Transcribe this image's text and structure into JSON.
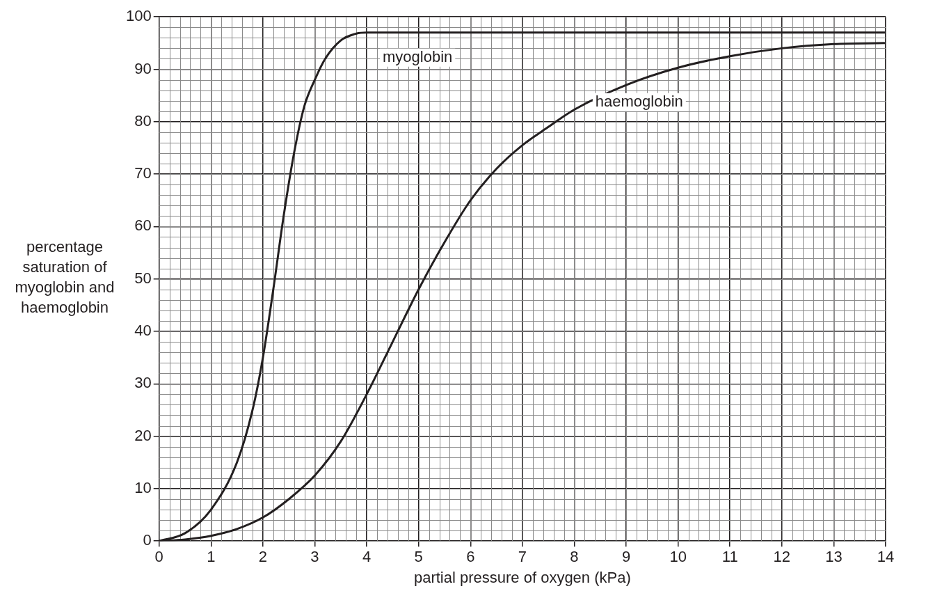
{
  "chart_data": {
    "type": "line",
    "xlabel": "partial pressure of oxygen (kPa)",
    "ylabel": "percentage saturation of myoglobin and haemoglobin",
    "xlim": [
      0,
      14
    ],
    "xticks": [
      0,
      1,
      2,
      3,
      4,
      5,
      6,
      7,
      8,
      9,
      10,
      11,
      12,
      13,
      14
    ],
    "ylim": [
      0,
      100
    ],
    "yticks": [
      0,
      10,
      20,
      30,
      40,
      50,
      60,
      70,
      80,
      90,
      100
    ],
    "grid": true,
    "legend": false,
    "marker": "none",
    "line_style": "solid",
    "series": [
      {
        "name": "myoglobin",
        "color": "#231f20",
        "x": [
          0,
          0.5,
          1,
          1.5,
          1.8,
          2,
          2.2,
          2.4,
          2.6,
          2.8,
          3,
          3.2,
          3.5,
          3.8,
          4,
          14
        ],
        "values": [
          0,
          1.5,
          6,
          15,
          25,
          35,
          48,
          62,
          74,
          83,
          88,
          92,
          95.5,
          96.8,
          97,
          97
        ]
      },
      {
        "name": "haemoglobin",
        "color": "#231f20",
        "x": [
          0,
          0.5,
          1,
          1.5,
          2,
          2.5,
          3,
          3.5,
          4,
          4.5,
          5,
          5.5,
          6,
          6.5,
          7,
          7.5,
          8,
          9,
          10,
          11,
          12,
          13,
          14
        ],
        "values": [
          0,
          0.3,
          1,
          2.3,
          4.5,
          8,
          12.5,
          19,
          28,
          38,
          48,
          57,
          65,
          71,
          75.5,
          79,
          82.3,
          87,
          90.3,
          92.5,
          94,
          94.8,
          95
        ]
      }
    ]
  }
}
